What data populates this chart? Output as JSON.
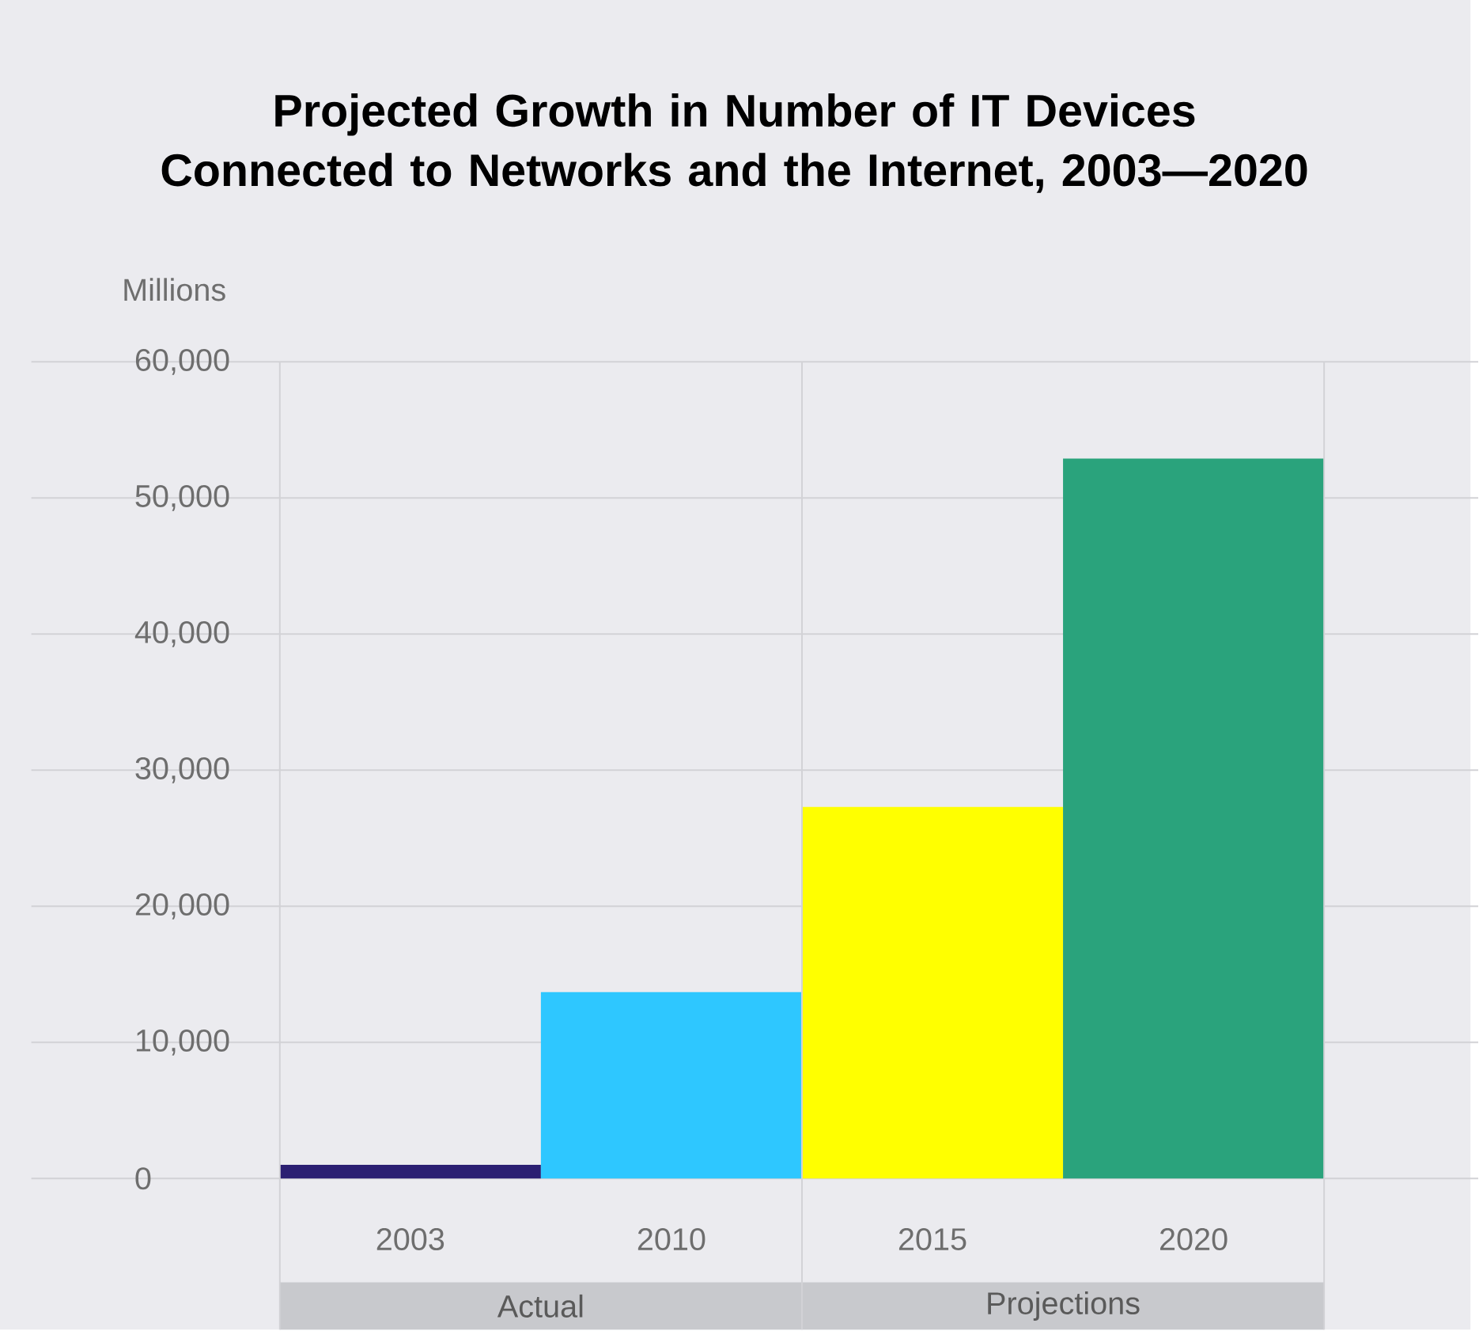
{
  "chart_data": {
    "type": "bar",
    "title": "Projected Growth in Number of IT Devices Connected to Networks and the Internet, 2003—2020",
    "ylabel": "Millions",
    "categories": [
      "2003",
      "2010",
      "2015",
      "2020"
    ],
    "values": [
      1000,
      13700,
      27300,
      52900
    ],
    "colors": [
      "#2b1f72",
      "#2ec7ff",
      "#ffff00",
      "#2aa37c"
    ],
    "ylim": [
      0,
      60000
    ],
    "yticks": [
      0,
      {
        "value": 10000,
        "label": "10,000"
      },
      {
        "value": 20000,
        "label": "20,000"
      },
      {
        "value": 30000,
        "label": "30,000"
      },
      {
        "value": 40000,
        "label": "40,000"
      },
      {
        "value": 50000,
        "label": "50,000"
      },
      {
        "value": 60000,
        "label": "60,000"
      }
    ],
    "grid": "y",
    "annotations": [
      "Actual",
      "Projections"
    ]
  }
}
